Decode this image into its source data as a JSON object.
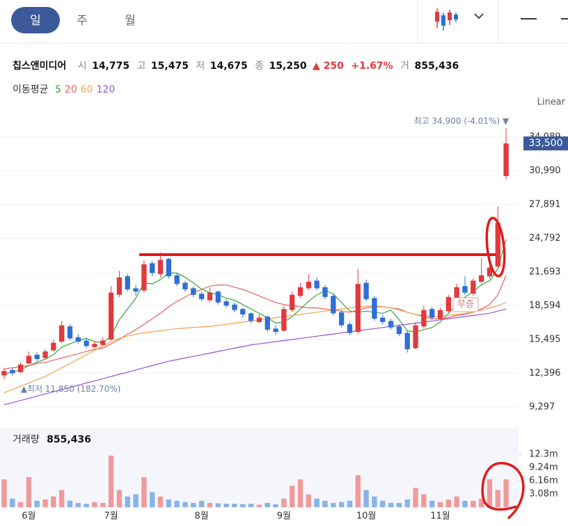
{
  "tabs": [
    "일",
    "주",
    "월"
  ],
  "quote": {
    "name": "칩스앤미디어",
    "items": [
      {
        "label": "시",
        "value": "14,775"
      },
      {
        "label": "고",
        "value": "15,475"
      },
      {
        "label": "저",
        "value": "14,675"
      },
      {
        "label": "종",
        "value": "15,250"
      }
    ],
    "change": "▲ 250",
    "change_pct": "+1.67%",
    "volume_label": "거",
    "volume": "855,436"
  },
  "chart_data": [
    {
      "type": "candlestick",
      "scale": "Linear",
      "ma_title": "이동평균",
      "up_color": "#e0393e",
      "down_color": "#2f6fd6",
      "grid": true,
      "categories": [
        null,
        null,
        null,
        "6월",
        null,
        null,
        null,
        null,
        null,
        null,
        null,
        null,
        null,
        "7월",
        null,
        null,
        null,
        null,
        null,
        null,
        null,
        null,
        null,
        null,
        "8월",
        null,
        null,
        null,
        null,
        null,
        null,
        null,
        null,
        null,
        "9월",
        null,
        null,
        null,
        null,
        null,
        null,
        null,
        null,
        null,
        "10월",
        null,
        null,
        null,
        null,
        null,
        null,
        null,
        null,
        "11월",
        null,
        null,
        null,
        null,
        null,
        null,
        null,
        null
      ],
      "open": [
        12200,
        12700,
        12500,
        13300,
        14100,
        13800,
        14500,
        15300,
        16700,
        15700,
        15400,
        14800,
        15000,
        15500,
        19600,
        21300,
        20200,
        20000,
        22500,
        21500,
        22900,
        21400,
        20700,
        20200,
        19700,
        19100,
        19900,
        19000,
        18700,
        18300,
        17900,
        17100,
        17600,
        16500,
        16300,
        18200,
        19500,
        20200,
        20900,
        20300,
        19500,
        18000,
        16900,
        16200,
        20700,
        19300,
        17500,
        17200,
        16700,
        16100,
        14700,
        16700,
        18300,
        17400,
        18100,
        19300,
        20400,
        19700,
        20800,
        21300,
        22200,
        30500
      ],
      "high": [
        12900,
        12900,
        13400,
        14400,
        14300,
        14600,
        15500,
        17200,
        16900,
        16000,
        15600,
        15300,
        15700,
        20400,
        21800,
        21500,
        20500,
        22800,
        22700,
        23500,
        23000,
        21600,
        20900,
        20400,
        19900,
        20200,
        20000,
        19200,
        18900,
        18400,
        18000,
        17800,
        17700,
        16800,
        18600,
        19900,
        20700,
        21500,
        21200,
        20500,
        19700,
        18200,
        17100,
        22000,
        21000,
        19500,
        17800,
        17400,
        16900,
        16300,
        17100,
        18600,
        18500,
        18400,
        19600,
        20600,
        21300,
        21100,
        23000,
        22500,
        27700,
        34900
      ],
      "low": [
        11850,
        12200,
        12400,
        13200,
        13500,
        13700,
        14400,
        15200,
        15400,
        15100,
        14700,
        14700,
        14900,
        15400,
        19400,
        19900,
        19500,
        19800,
        21300,
        21200,
        21100,
        20400,
        19900,
        19400,
        19000,
        18900,
        18700,
        18400,
        18000,
        17500,
        17000,
        17000,
        16200,
        15900,
        16200,
        18000,
        19300,
        20000,
        20000,
        19200,
        17700,
        16600,
        15900,
        16000,
        19000,
        17200,
        16900,
        16400,
        15800,
        14300,
        14600,
        16500,
        17300,
        17300,
        18000,
        19100,
        19600,
        19500,
        20600,
        21100,
        22000,
        30200
      ],
      "close": [
        12600,
        12400,
        13200,
        14000,
        13700,
        14400,
        15200,
        16800,
        15600,
        15300,
        14900,
        15100,
        15400,
        19800,
        21200,
        20100,
        19900,
        22400,
        21600,
        22800,
        21300,
        20600,
        20100,
        19600,
        19200,
        19800,
        18900,
        18600,
        18200,
        17800,
        17200,
        17500,
        16400,
        16200,
        18300,
        19600,
        20300,
        20800,
        20200,
        19400,
        17900,
        16800,
        16100,
        20600,
        19200,
        17400,
        17100,
        16600,
        16000,
        14600,
        16800,
        18200,
        17500,
        18200,
        19400,
        20300,
        19800,
        20900,
        21400,
        22100,
        26200,
        33500
      ],
      "ylim": [
        7700,
        36130
      ],
      "yticks": [
        {
          "value": 9297,
          "label": "9,297"
        },
        {
          "value": 12396,
          "label": "12,396"
        },
        {
          "value": 15495,
          "label": "15,495"
        },
        {
          "value": 18594,
          "label": "18,594"
        },
        {
          "value": 21693,
          "label": "21,693"
        },
        {
          "value": 24792,
          "label": "24,792"
        },
        {
          "value": 27891,
          "label": "27,891"
        },
        {
          "value": 30990,
          "label": "30,990"
        },
        {
          "value": 34089,
          "label": "34,089"
        }
      ],
      "last_price": {
        "value": 33500,
        "label": "33,500"
      },
      "high_label": "최고 34,900 (-4.01%) ▼",
      "low_label": "▲최저 11,850 (182.70%)",
      "event_label": "무증",
      "series": [
        {
          "name": "5",
          "color": "#35a835",
          "values": [
            12300,
            12500,
            12700,
            13100,
            13400,
            13700,
            14100,
            14800,
            15100,
            15400,
            15600,
            15300,
            15200,
            15800,
            17300,
            18300,
            19300,
            20700,
            20600,
            21000,
            21600,
            21600,
            21200,
            20700,
            20100,
            19800,
            19600,
            19300,
            19100,
            18700,
            18300,
            17900,
            17500,
            17000,
            17100,
            17600,
            18300,
            19000,
            19600,
            20000,
            19700,
            18900,
            18100,
            18000,
            18100,
            18000,
            17900,
            18200,
            17300,
            16300,
            16200,
            16400,
            16600,
            17100,
            17900,
            18700,
            19400,
            19900,
            20500,
            20900,
            22000,
            24700
          ]
        },
        {
          "name": "20",
          "color": "#e8605a",
          "values": [
            12800,
            12900,
            13000,
            13100,
            13300,
            13400,
            13600,
            13800,
            14000,
            14200,
            14400,
            14600,
            14700,
            15100,
            15500,
            16000,
            16400,
            16900,
            17400,
            17900,
            18500,
            19000,
            19400,
            19800,
            20100,
            20400,
            20500,
            20500,
            20300,
            20100,
            19800,
            19500,
            19200,
            18900,
            18700,
            18600,
            18500,
            18400,
            18400,
            18300,
            18200,
            18100,
            18000,
            18200,
            18400,
            18500,
            18500,
            18400,
            18300,
            18000,
            17800,
            17600,
            17400,
            17400,
            17500,
            17700,
            17800,
            18000,
            18300,
            18700,
            19600,
            21400
          ]
        },
        {
          "name": "60",
          "color": "#f0a04b",
          "values": [
            10600,
            10900,
            11200,
            11500,
            11800,
            12100,
            12500,
            12900,
            13300,
            13700,
            14100,
            14500,
            14900,
            15300,
            15600,
            15800,
            16000,
            16100,
            16200,
            16300,
            16400,
            16500,
            16550,
            16600,
            16650,
            16700,
            16800,
            16900,
            17000,
            17100,
            17200,
            17300,
            17400,
            17500,
            17600,
            17700,
            17800,
            17900,
            18000,
            18100,
            18200,
            18300,
            18400,
            18500,
            18550,
            18600,
            18500,
            18400,
            18200,
            18000,
            17800,
            17700,
            17600,
            17650,
            17700,
            17800,
            17900,
            18000,
            18200,
            18400,
            18600,
            18900
          ]
        },
        {
          "name": "120",
          "color": "#9b4fd6",
          "values": [
            9500,
            9700,
            9900,
            10100,
            10300,
            10500,
            10700,
            10900,
            11100,
            11300,
            11500,
            11700,
            11900,
            12100,
            12300,
            12500,
            12700,
            12900,
            13100,
            13300,
            13500,
            13650,
            13800,
            13950,
            14100,
            14250,
            14400,
            14550,
            14700,
            14850,
            15000,
            15100,
            15200,
            15300,
            15400,
            15500,
            15600,
            15700,
            15800,
            15900,
            16000,
            16100,
            16200,
            16300,
            16400,
            16500,
            16600,
            16700,
            16800,
            16900,
            17000,
            17100,
            17200,
            17300,
            17400,
            17500,
            17600,
            17700,
            17800,
            17900,
            18100,
            18300
          ]
        }
      ]
    },
    {
      "type": "bar",
      "title": "거래량",
      "title_value": "855,436",
      "up_color": "#ef9a9a",
      "down_color": "#86b3ea",
      "values": [
        6.5,
        2.0,
        1.2,
        7.0,
        1.5,
        1.8,
        2.5,
        4.0,
        1.5,
        1.0,
        0.8,
        1.2,
        1.0,
        12.0,
        4.0,
        2.5,
        3.0,
        7.0,
        3.5,
        2.5,
        1.8,
        1.5,
        1.2,
        1.0,
        1.5,
        1.0,
        0.9,
        0.8,
        0.8,
        0.7,
        0.8,
        0.6,
        1.0,
        0.7,
        2.0,
        5.0,
        6.5,
        3.0,
        2.0,
        1.5,
        1.0,
        1.2,
        1.5,
        7.5,
        4.0,
        2.5,
        1.5,
        1.0,
        1.0,
        1.8,
        4.5,
        3.0,
        1.5,
        1.2,
        1.8,
        2.5,
        1.5,
        1.5,
        2.0,
        6.5,
        4.0,
        6.5
      ],
      "ylim": [
        0,
        18
      ],
      "yticks": [
        {
          "value": 3.08,
          "label": "3.08m"
        },
        {
          "value": 6.16,
          "label": "6.16m"
        },
        {
          "value": 9.24,
          "label": "9.24m"
        },
        {
          "value": 12.3,
          "label": "12.3m"
        }
      ]
    }
  ]
}
